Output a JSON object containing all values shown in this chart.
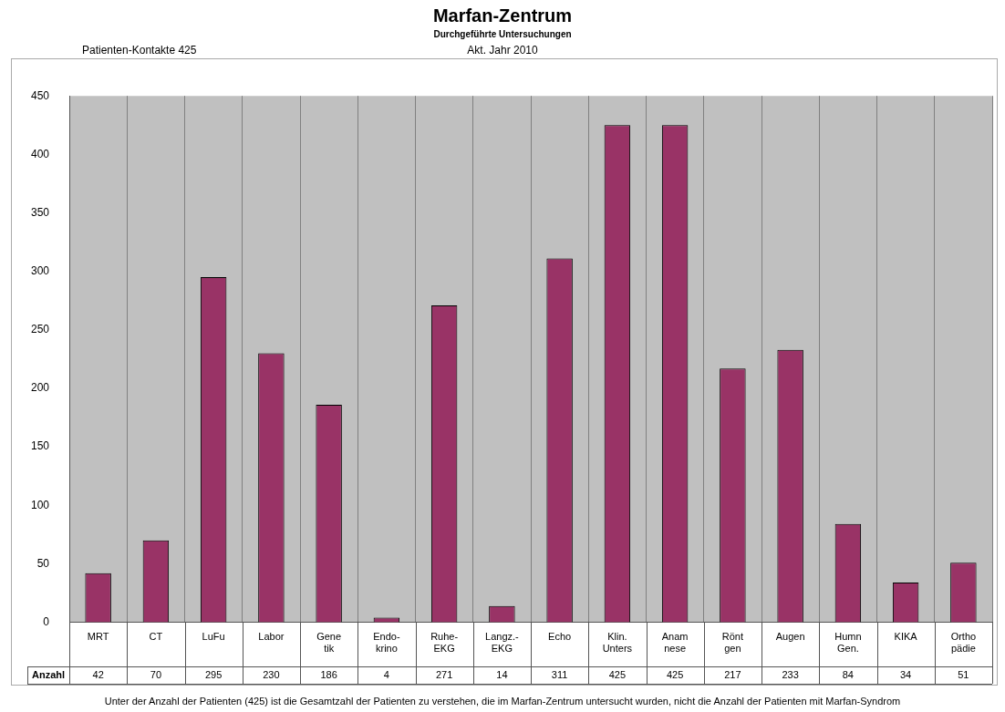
{
  "chart_data": {
    "type": "bar",
    "title": "Marfan-Zentrum",
    "subtitle": "Durchgeführte Untersuchungen",
    "annotations": [
      "Akt. Jahr 2010",
      "Patienten-Kontakte 425",
      "Unter der Anzahl der Patienten (425) ist die Gesamtzahl der Patienten zu verstehen, die im Marfan-Zentrum untersucht wurden, nicht die Anzahl der Patienten mit Marfan-Syndrom"
    ],
    "categories": [
      "MRT",
      "CT",
      "LuFu",
      "Labor",
      "Gene\ntik",
      "Endo-\nkrino",
      "Ruhe-\nEKG",
      "Langz.-\nEKG",
      "Echo",
      "Klin.\nUnters",
      "Anam\nnese",
      "Rönt\ngen",
      "Augen",
      "Humn\nGen.",
      "KIKA",
      "Ortho\npädie"
    ],
    "series": [
      {
        "name": "Anzahl",
        "color": "#993366",
        "values": [
          42,
          70,
          295,
          230,
          186,
          4,
          271,
          14,
          311,
          425,
          425,
          217,
          233,
          84,
          34,
          51
        ]
      }
    ],
    "ylim": [
      0,
      450
    ],
    "yticks": [
      0,
      50,
      100,
      150,
      200,
      250,
      300,
      350,
      400,
      450
    ],
    "grid": "x",
    "legend": false,
    "data_labels": true
  }
}
